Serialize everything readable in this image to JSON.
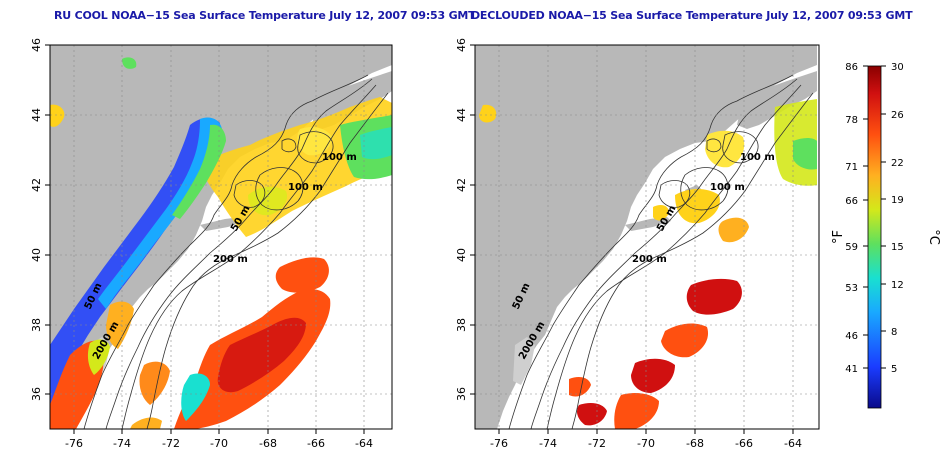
{
  "maps": {
    "left_title": "RU COOL NOAA−15 Sea Surface Temperature July 12, 2007 09:53 GMT",
    "right_title": "DECLOUDED NOAA−15 Sea Surface Temperature July 12, 2007 09:53 GMT",
    "x_ticks": [
      "-76",
      "-74",
      "-72",
      "-70",
      "-68",
      "-66",
      "-64"
    ],
    "y_ticks": [
      "36",
      "38",
      "40",
      "42",
      "44",
      "46"
    ],
    "contour_labels": {
      "c100a": "100 m",
      "c100b": "100 m",
      "c50": "50 m",
      "c200": "200 m",
      "c50b": "50 m",
      "c2000": "2000 m"
    }
  },
  "colorbar": {
    "f_ticks": [
      "86",
      "78",
      "71",
      "66",
      "59",
      "53",
      "46",
      "41"
    ],
    "c_ticks": [
      "30",
      "26",
      "22",
      "19",
      "15",
      "12",
      "8",
      "5"
    ],
    "f_unit": "°F",
    "c_unit": "°C",
    "colors": [
      "#0a0a8a",
      "#1a3cff",
      "#19a9ff",
      "#19e0d0",
      "#5ee05e",
      "#d4e81a",
      "#ffb020",
      "#ff5010",
      "#d01010",
      "#8a0000"
    ]
  }
}
